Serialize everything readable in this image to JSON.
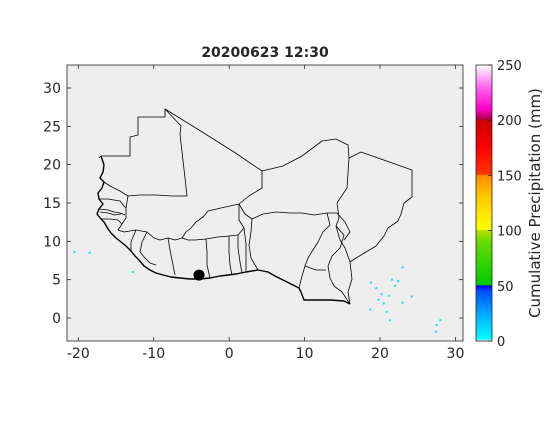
{
  "figure": {
    "title": "20200623 12:30"
  },
  "map": {
    "x_ticks": [
      "-20",
      "-10",
      "0",
      "10",
      "20",
      "30"
    ],
    "x_tick_values": [
      -20,
      -10,
      0,
      10,
      20,
      30
    ],
    "y_ticks": [
      "0",
      "5",
      "10",
      "15",
      "20",
      "25",
      "30"
    ],
    "y_tick_values": [
      0,
      5,
      10,
      15,
      20,
      25,
      30
    ],
    "xlim": [
      -21.5,
      31
    ],
    "ylim": [
      -3,
      33
    ],
    "background_color": "#eeeeee",
    "marker": {
      "lon": -4.0,
      "lat": 5.6,
      "color": "#000000"
    },
    "precip_points": [
      {
        "lon": -20.5,
        "lat": 8.6
      },
      {
        "lon": -18.5,
        "lat": 8.5
      },
      {
        "lon": -12.8,
        "lat": 6.0
      },
      {
        "lon": 18.8,
        "lat": 4.6
      },
      {
        "lon": 19.5,
        "lat": 3.9
      },
      {
        "lon": 20.2,
        "lat": 3.1
      },
      {
        "lon": 19.8,
        "lat": 2.4
      },
      {
        "lon": 20.5,
        "lat": 1.9
      },
      {
        "lon": 21.6,
        "lat": 5.0
      },
      {
        "lon": 22.4,
        "lat": 4.8
      },
      {
        "lon": 22.0,
        "lat": 4.2
      },
      {
        "lon": 21.2,
        "lat": 2.9
      },
      {
        "lon": 18.7,
        "lat": 1.1
      },
      {
        "lon": 23.0,
        "lat": 2.0
      },
      {
        "lon": 24.2,
        "lat": 2.8
      },
      {
        "lon": 20.9,
        "lat": 0.8
      },
      {
        "lon": 21.3,
        "lat": -0.3
      },
      {
        "lon": 28.0,
        "lat": -0.3
      },
      {
        "lon": 27.5,
        "lat": -0.9
      },
      {
        "lon": 27.4,
        "lat": -1.8
      },
      {
        "lon": 23.0,
        "lat": 6.6
      }
    ]
  },
  "colorbar": {
    "label": "Cumulative Precipitation (mm)",
    "ticks": [
      "0",
      "50",
      "100",
      "150",
      "200",
      "250"
    ],
    "tick_values": [
      0,
      50,
      100,
      150,
      200,
      250
    ],
    "range": [
      0,
      250
    ],
    "stops": [
      {
        "v": 0,
        "color": "#ffffff"
      },
      {
        "v": 2,
        "color": "#00ffff"
      },
      {
        "v": 25,
        "color": "#00a8ff"
      },
      {
        "v": 45,
        "color": "#0050ff"
      },
      {
        "v": 50,
        "color": "#0000ff"
      },
      {
        "v": 51,
        "color": "#00cc00"
      },
      {
        "v": 90,
        "color": "#66dd00"
      },
      {
        "v": 100,
        "color": "#bbdd00"
      },
      {
        "v": 101,
        "color": "#ffff00"
      },
      {
        "v": 130,
        "color": "#ffcc00"
      },
      {
        "v": 150,
        "color": "#ff8800"
      },
      {
        "v": 151,
        "color": "#ff3300"
      },
      {
        "v": 175,
        "color": "#ff0000"
      },
      {
        "v": 200,
        "color": "#cc0000"
      },
      {
        "v": 201,
        "color": "#aa0044"
      },
      {
        "v": 210,
        "color": "#ff00cc"
      },
      {
        "v": 230,
        "color": "#ff66ee"
      },
      {
        "v": 250,
        "color": "#ffffff"
      }
    ]
  }
}
